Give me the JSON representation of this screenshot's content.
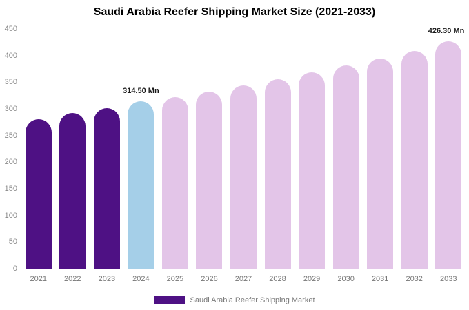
{
  "legend": {
    "label": "Saudi Arabia Reefer Shipping Market",
    "swatch_color": "#4e1184"
  },
  "colors": {
    "historical": "#4e1184",
    "current": "#a5cfe8",
    "forecast": "#e3c5e8"
  },
  "chart_data": {
    "type": "bar",
    "title": "Saudi Arabia Reefer Shipping Market Size (2021-2033)",
    "categories": [
      "2021",
      "2022",
      "2023",
      "2024",
      "2025",
      "2026",
      "2027",
      "2028",
      "2029",
      "2030",
      "2031",
      "2032",
      "2033"
    ],
    "values": [
      280,
      292,
      301,
      314.5,
      322,
      332,
      344,
      356,
      368,
      381,
      394,
      409,
      426.3
    ],
    "bar_colors": [
      "#4e1184",
      "#4e1184",
      "#4e1184",
      "#a5cfe8",
      "#e3c5e8",
      "#e3c5e8",
      "#e3c5e8",
      "#e3c5e8",
      "#e3c5e8",
      "#e3c5e8",
      "#e3c5e8",
      "#e3c5e8",
      "#e3c5e8"
    ],
    "xlabel": "",
    "ylabel": "",
    "ylim": [
      0,
      450
    ],
    "yticks": [
      0,
      50,
      100,
      150,
      200,
      250,
      300,
      350,
      400,
      450
    ],
    "grid": false,
    "legend_position": "bottom",
    "annotations": [
      {
        "index": 3,
        "text": "314.50 Mn"
      },
      {
        "index": 12,
        "text": "426.30 Mn"
      }
    ]
  }
}
